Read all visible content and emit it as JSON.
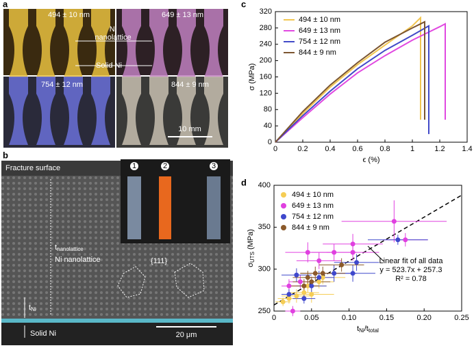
{
  "panels": {
    "a": "a",
    "b": "b",
    "c": "c",
    "d": "d"
  },
  "photo_a": {
    "sizes": [
      "494 ± 10 nm",
      "649 ± 13 nm",
      "754 ± 12 nm",
      "844 ± 9 nm"
    ],
    "nanolattice": "Ni\nnanolattice",
    "solid": "Solid Ni",
    "scale": "10 mm"
  },
  "photo_b": {
    "fracture": "Fracture surface",
    "steps": [
      "1",
      "2",
      "3"
    ],
    "t": "t",
    "t_sub": "nanolattice",
    "nanolattice": "Ni nanolattice",
    "plane": "{111}",
    "t_ni": "t",
    "t_ni_sub": "Ni",
    "solid": "Solid Ni",
    "scale": "20 μm"
  },
  "chart_data": [
    {
      "type": "line",
      "ylabel": "σ (MPa)",
      "xlabel": "ϵ (%)",
      "xlim": [
        0,
        1.4
      ],
      "ylim": [
        0,
        320
      ],
      "xticks": [
        0,
        0.2,
        0.4,
        0.6,
        0.8,
        1,
        1.2,
        1.4
      ],
      "yticks": [
        0,
        40,
        80,
        120,
        160,
        200,
        240,
        280,
        320
      ],
      "series": [
        {
          "name": "494 ± 10 nm",
          "color": "#f2c650",
          "x": [
            0,
            0.2,
            0.4,
            0.6,
            0.8,
            1,
            1.06,
            1.06
          ],
          "values": [
            0,
            70,
            135,
            190,
            238,
            285,
            305,
            55
          ]
        },
        {
          "name": "649 ± 13 nm",
          "color": "#e048e0",
          "x": [
            0,
            0.2,
            0.4,
            0.6,
            0.8,
            1,
            1.2,
            1.24,
            1.24
          ],
          "values": [
            0,
            60,
            118,
            170,
            212,
            250,
            283,
            290,
            55
          ]
        },
        {
          "name": "754 ± 12 nm",
          "color": "#4049c8",
          "x": [
            0,
            0.2,
            0.4,
            0.6,
            0.8,
            1,
            1.12,
            1.12
          ],
          "values": [
            0,
            65,
            125,
            180,
            225,
            262,
            285,
            20
          ]
        },
        {
          "name": "844 ± 9 nm",
          "color": "#7b5530",
          "x": [
            0,
            0.2,
            0.4,
            0.6,
            0.8,
            1,
            1.09,
            1.09
          ],
          "values": [
            0,
            75,
            140,
            195,
            245,
            280,
            295,
            55
          ]
        }
      ]
    },
    {
      "type": "scatter",
      "ylabel": "σ",
      "ylabel_sub": "UTS",
      "ylabel_unit": " (MPa)",
      "xlabel": "t",
      "xlabel_sub": "Ni",
      "xlabel_mid": "/t",
      "xlabel_sub2": "total",
      "xlim": [
        0,
        0.25
      ],
      "ylim": [
        250,
        400
      ],
      "xticks": [
        0,
        0.05,
        {
          "value": 0.1,
          "label": "0.10"
        },
        0.15,
        {
          "value": 0.2,
          "label": "0.20"
        },
        0.25
      ],
      "yticks": [
        250,
        300,
        350,
        400
      ],
      "series": [
        {
          "name": "494 ± 10 nm",
          "color": "#f5cd55",
          "x": [
            0.012,
            0.02,
            0.03,
            0.04,
            0.045,
            0.05,
            0.06,
            0.065
          ],
          "values": [
            261,
            265,
            268,
            272,
            280,
            270,
            285,
            290
          ],
          "x_err": [
            0.01,
            0.015,
            0.02,
            0.02,
            0.025,
            0.03,
            0.02,
            0.03
          ],
          "y_err": [
            5,
            6,
            8,
            6,
            8,
            10,
            8,
            8
          ]
        },
        {
          "name": "649 ± 13 nm",
          "color": "#e040e0",
          "x": [
            0.025,
            0.02,
            0.035,
            0.045,
            0.06,
            0.08,
            0.105,
            0.105,
            0.16,
            0.175
          ],
          "values": [
            250,
            280,
            285,
            320,
            310,
            320,
            330,
            320,
            357,
            335
          ],
          "x_err": [
            0.01,
            0.01,
            0.015,
            0.03,
            0.03,
            0.03,
            0.04,
            0.035,
            0.07,
            0.03
          ],
          "y_err": [
            6,
            8,
            8,
            12,
            10,
            10,
            12,
            10,
            25,
            8
          ]
        },
        {
          "name": "754 ± 12 nm",
          "color": "#3f48cc",
          "x": [
            0.02,
            0.03,
            0.04,
            0.05,
            0.06,
            0.08,
            0.11,
            0.105,
            0.165
          ],
          "values": [
            270,
            293,
            265,
            280,
            290,
            295,
            308,
            295,
            335
          ],
          "x_err": [
            0.01,
            0.02,
            0.015,
            0.02,
            0.02,
            0.03,
            0.03,
            0.03,
            0.04
          ],
          "y_err": [
            6,
            8,
            6,
            8,
            8,
            10,
            10,
            10,
            6
          ]
        },
        {
          "name": "844 ± 9 nm",
          "color": "#8b5a2b",
          "x": [
            0.04,
            0.045,
            0.05,
            0.055,
            0.065,
            0.09
          ],
          "values": [
            280,
            290,
            285,
            295,
            295,
            305
          ],
          "x_err": [
            0.02,
            0.02,
            0.025,
            0.02,
            0.03,
            0.03
          ],
          "y_err": [
            8,
            8,
            6,
            8,
            8,
            8
          ]
        }
      ],
      "fit": {
        "x": [
          0,
          0.25
        ],
        "values": [
          257.3,
          388.2
        ]
      },
      "annotations": [
        "Linear fit of all data",
        "y = 523.7x + 257.3",
        "R² = 0.78"
      ]
    }
  ]
}
